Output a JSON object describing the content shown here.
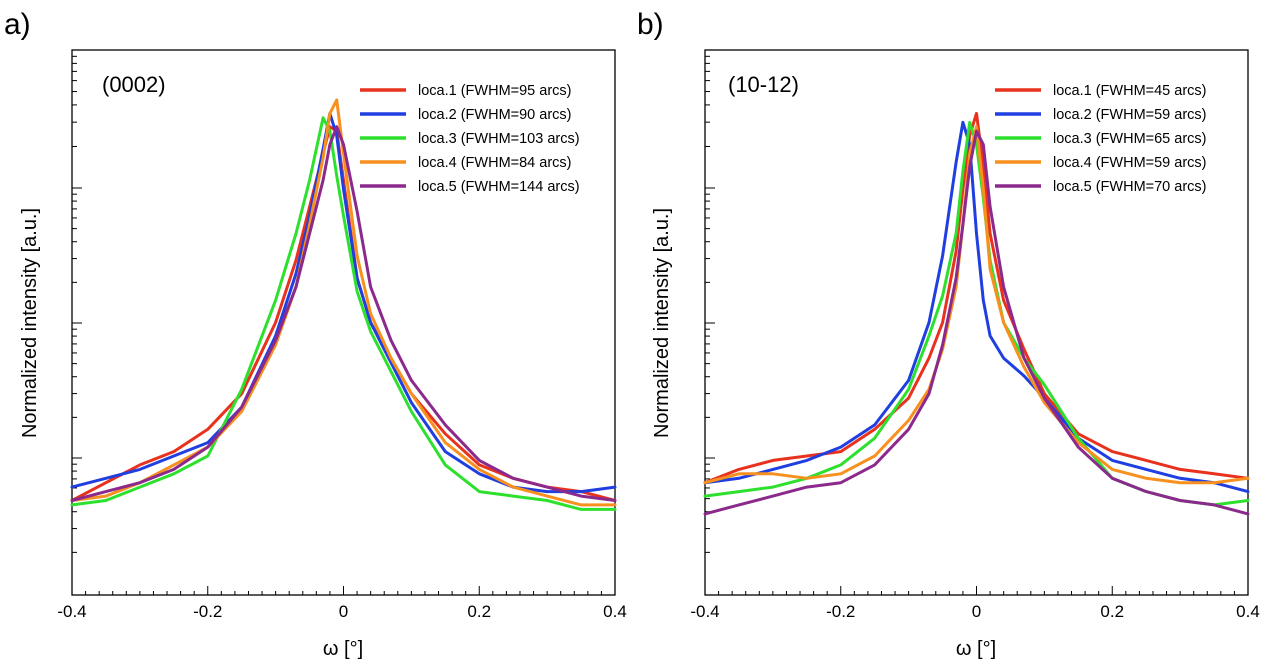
{
  "chart_data": [
    {
      "panel_label": "a)",
      "annotation": "(0002)",
      "type": "line",
      "xlabel": "ω [°]",
      "ylabel": "Normalized intensity [a.u.]",
      "xlim": [
        -0.4,
        0.4
      ],
      "ylim": [
        0,
        1
      ],
      "xticks": [
        -0.4,
        -0.2,
        0,
        0.2,
        0.4
      ],
      "xtick_labels": [
        "-0.4",
        "-0.2",
        "0",
        "0.2",
        "0.4"
      ],
      "ytick_labels_shown": false,
      "grid": false,
      "legend_position": "top-right",
      "series": [
        {
          "name": "loca.1 (FWHM=95 arcs)",
          "color": "#e8321e",
          "x": [
            -0.4,
            -0.35,
            -0.3,
            -0.25,
            -0.2,
            -0.15,
            -0.1,
            -0.07,
            -0.05,
            -0.03,
            -0.02,
            -0.01,
            0,
            0.02,
            0.04,
            0.07,
            0.1,
            0.15,
            0.2,
            0.25,
            0.3,
            0.35,
            0.4
          ],
          "y": [
            0.1,
            0.14,
            0.18,
            0.21,
            0.26,
            0.34,
            0.5,
            0.64,
            0.76,
            0.88,
            0.94,
            0.93,
            0.82,
            0.6,
            0.5,
            0.42,
            0.34,
            0.25,
            0.18,
            0.15,
            0.13,
            0.12,
            0.1
          ]
        },
        {
          "name": "loca.2 (FWHM=90 arcs)",
          "color": "#1f3fe0",
          "x": [
            -0.4,
            -0.35,
            -0.3,
            -0.25,
            -0.2,
            -0.15,
            -0.1,
            -0.07,
            -0.05,
            -0.03,
            -0.02,
            -0.01,
            0,
            0.02,
            0.04,
            0.07,
            0.1,
            0.15,
            0.2,
            0.25,
            0.3,
            0.35,
            0.4
          ],
          "y": [
            0.13,
            0.15,
            0.17,
            0.2,
            0.23,
            0.31,
            0.47,
            0.61,
            0.74,
            0.89,
            0.97,
            0.92,
            0.8,
            0.6,
            0.5,
            0.41,
            0.32,
            0.21,
            0.16,
            0.13,
            0.12,
            0.12,
            0.13
          ]
        },
        {
          "name": "loca.3 (FWHM=103 arcs)",
          "color": "#2ee02e",
          "x": [
            -0.4,
            -0.35,
            -0.3,
            -0.25,
            -0.2,
            -0.15,
            -0.1,
            -0.07,
            -0.05,
            -0.03,
            -0.02,
            -0.01,
            0,
            0.02,
            0.04,
            0.07,
            0.1,
            0.15,
            0.2,
            0.25,
            0.3,
            0.35,
            0.4
          ],
          "y": [
            0.09,
            0.1,
            0.13,
            0.16,
            0.2,
            0.35,
            0.55,
            0.7,
            0.82,
            0.96,
            0.93,
            0.83,
            0.74,
            0.57,
            0.48,
            0.39,
            0.3,
            0.18,
            0.12,
            0.11,
            0.1,
            0.08,
            0.08
          ]
        },
        {
          "name": "loca.4 (FWHM=84 arcs)",
          "color": "#f7901e",
          "x": [
            -0.4,
            -0.35,
            -0.3,
            -0.25,
            -0.2,
            -0.15,
            -0.1,
            -0.07,
            -0.05,
            -0.03,
            -0.02,
            -0.01,
            0,
            0.02,
            0.04,
            0.07,
            0.1,
            0.15,
            0.2,
            0.25,
            0.3,
            0.35,
            0.4
          ],
          "y": [
            0.1,
            0.11,
            0.14,
            0.18,
            0.22,
            0.3,
            0.45,
            0.58,
            0.72,
            0.87,
            0.97,
            1.0,
            0.88,
            0.65,
            0.52,
            0.42,
            0.34,
            0.23,
            0.17,
            0.13,
            0.11,
            0.09,
            0.09
          ]
        },
        {
          "name": "loca.5 (FWHM=144 arcs)",
          "color": "#8b2a8c",
          "x": [
            -0.4,
            -0.35,
            -0.3,
            -0.25,
            -0.2,
            -0.15,
            -0.1,
            -0.07,
            -0.05,
            -0.03,
            -0.02,
            -0.01,
            0,
            0.02,
            0.04,
            0.07,
            0.1,
            0.15,
            0.2,
            0.25,
            0.3,
            0.35,
            0.4
          ],
          "y": [
            0.1,
            0.12,
            0.14,
            0.17,
            0.22,
            0.31,
            0.46,
            0.58,
            0.7,
            0.82,
            0.9,
            0.94,
            0.9,
            0.75,
            0.58,
            0.46,
            0.37,
            0.27,
            0.19,
            0.15,
            0.13,
            0.11,
            0.1
          ]
        }
      ]
    },
    {
      "panel_label": "b)",
      "annotation": "(10-12)",
      "type": "line",
      "xlabel": "ω [°]",
      "ylabel": "Normalized intensity [a.u.]",
      "xlim": [
        -0.4,
        0.4
      ],
      "ylim": [
        0,
        1
      ],
      "xticks": [
        -0.4,
        -0.2,
        0,
        0.2,
        0.4
      ],
      "xtick_labels": [
        "-0.4",
        "-0.2",
        "0",
        "0.2",
        "0.4"
      ],
      "ytick_labels_shown": false,
      "grid": false,
      "legend_position": "top-right",
      "series": [
        {
          "name": "loca.1 (FWHM=45 arcs)",
          "color": "#e8321e",
          "x": [
            -0.4,
            -0.35,
            -0.3,
            -0.25,
            -0.2,
            -0.15,
            -0.1,
            -0.07,
            -0.05,
            -0.03,
            -0.02,
            -0.01,
            0,
            0.01,
            0.02,
            0.04,
            0.07,
            0.1,
            0.15,
            0.2,
            0.25,
            0.3,
            0.35,
            0.4
          ],
          "y": [
            0.14,
            0.17,
            0.19,
            0.2,
            0.21,
            0.26,
            0.33,
            0.42,
            0.5,
            0.66,
            0.8,
            0.92,
            0.97,
            0.85,
            0.7,
            0.55,
            0.44,
            0.34,
            0.25,
            0.21,
            0.19,
            0.17,
            0.16,
            0.15
          ]
        },
        {
          "name": "loca.2 (FWHM=59 arcs)",
          "color": "#1f3fe0",
          "x": [
            -0.4,
            -0.35,
            -0.3,
            -0.25,
            -0.2,
            -0.15,
            -0.1,
            -0.07,
            -0.05,
            -0.03,
            -0.02,
            -0.01,
            0,
            0.01,
            0.02,
            0.04,
            0.07,
            0.1,
            0.15,
            0.2,
            0.25,
            0.3,
            0.35,
            0.4
          ],
          "y": [
            0.14,
            0.15,
            0.17,
            0.19,
            0.22,
            0.27,
            0.37,
            0.5,
            0.65,
            0.86,
            0.95,
            0.9,
            0.7,
            0.55,
            0.47,
            0.42,
            0.38,
            0.33,
            0.24,
            0.19,
            0.17,
            0.15,
            0.14,
            0.12
          ]
        },
        {
          "name": "loca.3 (FWHM=65 arcs)",
          "color": "#2ee02e",
          "x": [
            -0.4,
            -0.35,
            -0.3,
            -0.25,
            -0.2,
            -0.15,
            -0.1,
            -0.07,
            -0.05,
            -0.03,
            -0.02,
            -0.01,
            0,
            0.01,
            0.02,
            0.04,
            0.07,
            0.1,
            0.15,
            0.2,
            0.25,
            0.3,
            0.35,
            0.4
          ],
          "y": [
            0.11,
            0.12,
            0.13,
            0.15,
            0.18,
            0.24,
            0.35,
            0.47,
            0.56,
            0.7,
            0.84,
            0.95,
            0.9,
            0.78,
            0.64,
            0.5,
            0.42,
            0.36,
            0.24,
            0.15,
            0.12,
            0.1,
            0.09,
            0.1
          ]
        },
        {
          "name": "loca.4 (FWHM=59 arcs)",
          "color": "#f7901e",
          "x": [
            -0.4,
            -0.35,
            -0.3,
            -0.25,
            -0.2,
            -0.15,
            -0.1,
            -0.07,
            -0.05,
            -0.03,
            -0.02,
            -0.01,
            0,
            0.01,
            0.02,
            0.04,
            0.07,
            0.1,
            0.15,
            0.2,
            0.25,
            0.3,
            0.35,
            0.4
          ],
          "y": [
            0.14,
            0.16,
            0.16,
            0.15,
            0.16,
            0.2,
            0.28,
            0.35,
            0.44,
            0.58,
            0.72,
            0.88,
            0.94,
            0.8,
            0.62,
            0.5,
            0.4,
            0.32,
            0.23,
            0.17,
            0.15,
            0.14,
            0.14,
            0.15
          ]
        },
        {
          "name": "loca.5 (FWHM=70 arcs)",
          "color": "#8b2a8c",
          "x": [
            -0.4,
            -0.35,
            -0.3,
            -0.25,
            -0.2,
            -0.15,
            -0.1,
            -0.07,
            -0.05,
            -0.03,
            -0.02,
            -0.01,
            0,
            0.01,
            0.02,
            0.04,
            0.07,
            0.1,
            0.15,
            0.2,
            0.25,
            0.3,
            0.35,
            0.4
          ],
          "y": [
            0.07,
            0.09,
            0.11,
            0.13,
            0.14,
            0.18,
            0.26,
            0.34,
            0.45,
            0.6,
            0.72,
            0.85,
            0.93,
            0.9,
            0.76,
            0.58,
            0.42,
            0.33,
            0.22,
            0.15,
            0.12,
            0.1,
            0.09,
            0.07
          ]
        }
      ]
    }
  ]
}
